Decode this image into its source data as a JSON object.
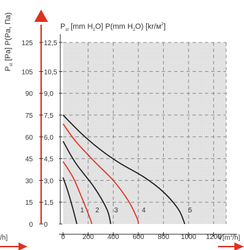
{
  "chart_data": {
    "type": "line",
    "title": "P st [mm H2O] P(mm H2O) [kr/м²]",
    "title_parts": {
      "p1": "P",
      "s1": "st",
      "p2": " [mm H",
      "s2": "2",
      "p3": "O] P(mm H",
      "s3": "2",
      "p4": "O) [kr/м",
      "s4": "2",
      "p5": "]"
    },
    "ylabel_left": "P st [Pa] P(Pa, Па)",
    "ylabel_left_parts": {
      "p1": "P",
      "s1": "st",
      "p2": " [Pa] P(Pa, Па)"
    },
    "xlabel": "V[m3/h]",
    "xlabel_parts": {
      "p1": "V[m",
      "s1": "3",
      "p2": "/h]"
    },
    "left_cut_label": "/h]",
    "xlim": [
      0,
      1300
    ],
    "ylim_pa": [
      0,
      125
    ],
    "ylim_mm": [
      0,
      12.5
    ],
    "x_ticks": [
      "0",
      "200",
      "400",
      "600",
      "800",
      "1000",
      "1200"
    ],
    "y_ticks_pa": [
      "0",
      "15",
      "30",
      "45",
      "60",
      "75",
      "90",
      "105",
      "125"
    ],
    "y_ticks_mm": [
      "0",
      "1,5",
      "3,0",
      "4,5",
      "6,0",
      "7,5",
      "9,0",
      "10,5",
      "12,5"
    ],
    "grid": true,
    "colors": {
      "black": "#1a1a1a",
      "red": "#e0311f",
      "grid": "#8c8c8c",
      "area": "#e6e6e6"
    },
    "series": [
      {
        "name": "1",
        "color": "#1a1a1a",
        "points": [
          [
            0,
            32
          ],
          [
            40,
            22
          ],
          [
            80,
            10
          ],
          [
            110,
            0
          ]
        ]
      },
      {
        "name": "2",
        "color": "#e0311f",
        "points": [
          [
            0,
            43
          ],
          [
            80,
            32
          ],
          [
            150,
            18
          ],
          [
            210,
            5
          ],
          [
            230,
            0
          ]
        ]
      },
      {
        "name": "3",
        "color": "#1a1a1a",
        "points": [
          [
            0,
            57
          ],
          [
            100,
            42
          ],
          [
            250,
            25
          ],
          [
            350,
            10
          ],
          [
            380,
            0
          ]
        ]
      },
      {
        "name": "4",
        "color": "#e0311f",
        "points": [
          [
            0,
            69
          ],
          [
            100,
            57
          ],
          [
            250,
            43
          ],
          [
            400,
            30
          ],
          [
            520,
            16
          ],
          [
            590,
            4
          ],
          [
            600,
            0
          ]
        ]
      },
      {
        "name": "5",
        "color": "#1a1a1a",
        "points": [
          [
            0,
            75
          ],
          [
            150,
            62
          ],
          [
            300,
            51
          ],
          [
            450,
            42
          ],
          [
            650,
            32
          ],
          [
            800,
            22
          ],
          [
            920,
            10
          ],
          [
            970,
            0
          ]
        ]
      }
    ]
  }
}
